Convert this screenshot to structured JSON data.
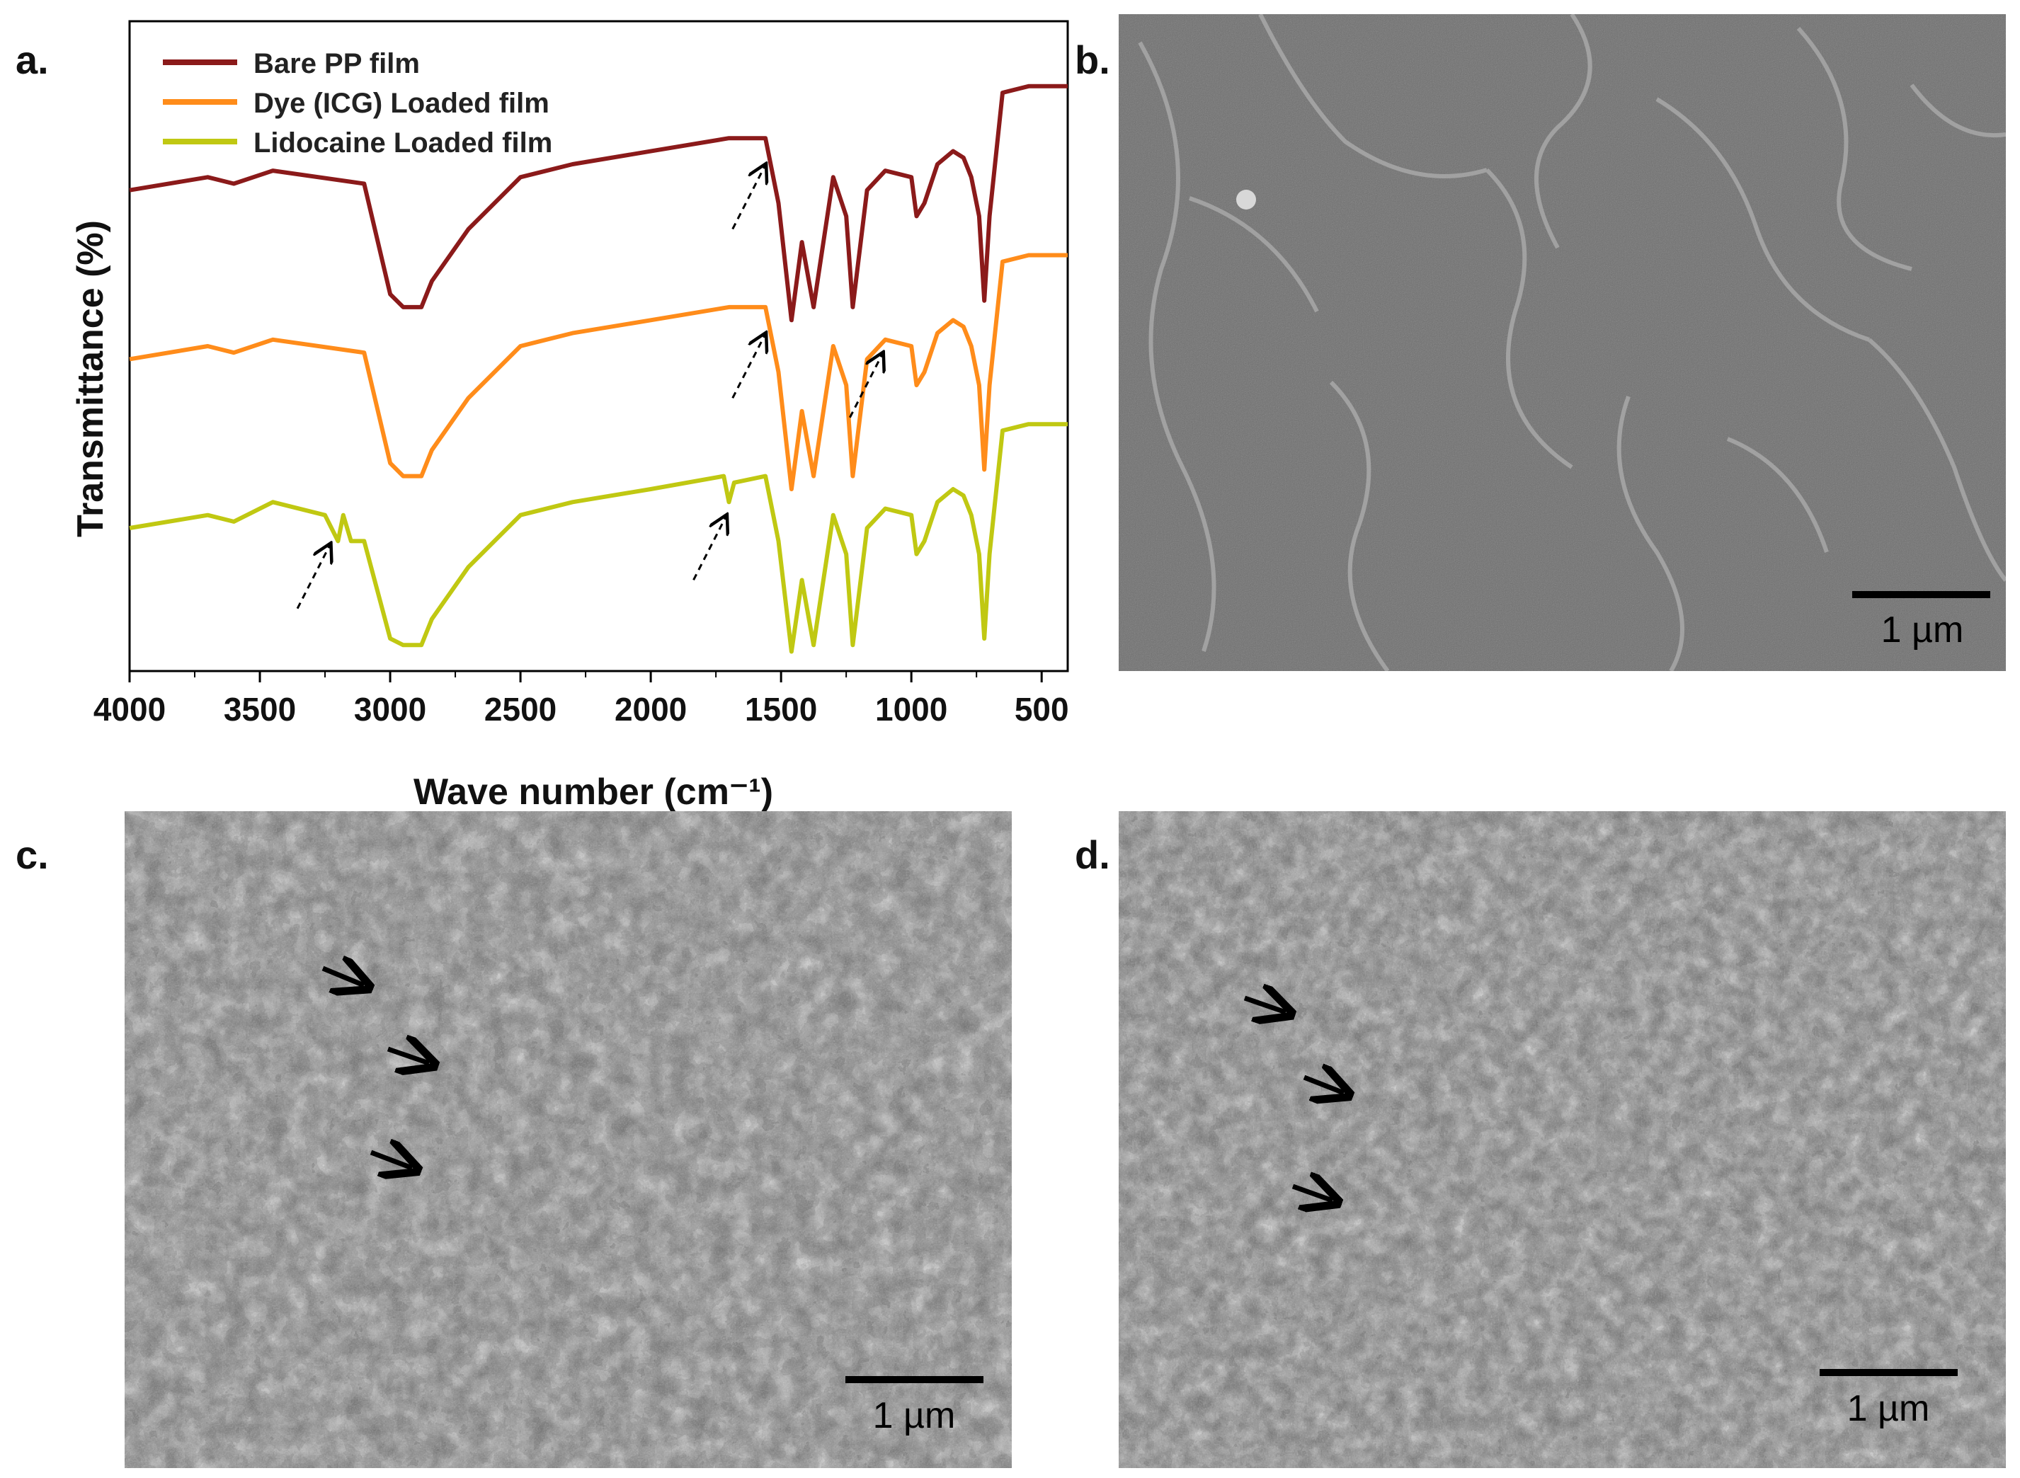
{
  "panels": {
    "a": {
      "label": "a."
    },
    "b": {
      "label": "b.",
      "scale_bar": "1 µm"
    },
    "c": {
      "label": "c.",
      "scale_bar": "1 µm"
    },
    "d": {
      "label": "d.",
      "scale_bar": "1 µm"
    }
  },
  "chart_data": {
    "type": "line",
    "xlabel": "Wave number (cm⁻¹)",
    "ylabel": "Transmittance (%)",
    "xlim": [
      4000,
      400
    ],
    "x_reversed": true,
    "xticks": [
      4000,
      3500,
      3000,
      2500,
      2000,
      1500,
      1000,
      500
    ],
    "legend_position": "top-left",
    "y_tick_labels_shown": false,
    "series": [
      {
        "name": "Bare PP film",
        "color": "#8b1a1a",
        "x": [
          4000,
          3700,
          3600,
          3450,
          3100,
          3000,
          2950,
          2880,
          2840,
          2700,
          2500,
          2300,
          2000,
          1700,
          1560,
          1510,
          1460,
          1420,
          1375,
          1300,
          1250,
          1225,
          1170,
          1100,
          1000,
          980,
          950,
          900,
          840,
          800,
          770,
          740,
          720,
          700,
          650,
          550,
          400
        ],
        "y": [
          0.74,
          0.76,
          0.75,
          0.77,
          0.75,
          0.58,
          0.56,
          0.56,
          0.6,
          0.68,
          0.76,
          0.78,
          0.8,
          0.82,
          0.82,
          0.72,
          0.54,
          0.66,
          0.56,
          0.76,
          0.7,
          0.56,
          0.74,
          0.77,
          0.76,
          0.7,
          0.72,
          0.78,
          0.8,
          0.79,
          0.76,
          0.7,
          0.57,
          0.7,
          0.89,
          0.9,
          0.9
        ]
      },
      {
        "name": "Dye (ICG) Loaded film",
        "color": "#ff8c1a",
        "x": [
          4000,
          3700,
          3600,
          3450,
          3100,
          3000,
          2950,
          2880,
          2840,
          2700,
          2500,
          2300,
          2000,
          1700,
          1560,
          1510,
          1460,
          1420,
          1375,
          1300,
          1250,
          1225,
          1170,
          1100,
          1000,
          980,
          950,
          900,
          840,
          800,
          770,
          740,
          720,
          700,
          650,
          550,
          400
        ],
        "y": [
          0.48,
          0.5,
          0.49,
          0.51,
          0.49,
          0.32,
          0.3,
          0.3,
          0.34,
          0.42,
          0.5,
          0.52,
          0.54,
          0.56,
          0.56,
          0.46,
          0.28,
          0.4,
          0.3,
          0.5,
          0.44,
          0.3,
          0.48,
          0.51,
          0.5,
          0.44,
          0.46,
          0.52,
          0.54,
          0.53,
          0.5,
          0.44,
          0.31,
          0.44,
          0.63,
          0.64,
          0.64
        ]
      },
      {
        "name": "Lidocaine Loaded film",
        "color": "#c0c812",
        "x": [
          4000,
          3700,
          3600,
          3450,
          3250,
          3200,
          3180,
          3150,
          3100,
          3000,
          2950,
          2880,
          2840,
          2700,
          2500,
          2300,
          2000,
          1720,
          1700,
          1680,
          1560,
          1510,
          1460,
          1420,
          1375,
          1300,
          1250,
          1225,
          1170,
          1100,
          1000,
          980,
          950,
          900,
          840,
          800,
          770,
          740,
          720,
          700,
          650,
          550,
          400
        ],
        "y": [
          0.22,
          0.24,
          0.23,
          0.26,
          0.24,
          0.2,
          0.24,
          0.2,
          0.2,
          0.05,
          0.04,
          0.04,
          0.08,
          0.16,
          0.24,
          0.26,
          0.28,
          0.3,
          0.26,
          0.29,
          0.3,
          0.2,
          0.03,
          0.14,
          0.04,
          0.24,
          0.18,
          0.04,
          0.22,
          0.25,
          0.24,
          0.18,
          0.2,
          0.26,
          0.28,
          0.27,
          0.24,
          0.18,
          0.05,
          0.18,
          0.37,
          0.38,
          0.38
        ]
      }
    ],
    "annotations": [
      {
        "type": "dashed-arrow",
        "series": "Bare PP film",
        "points_to_x": 1550
      },
      {
        "type": "dashed-arrow",
        "series": "Dye (ICG) Loaded film",
        "points_to_x": 1550
      },
      {
        "type": "dashed-arrow",
        "series": "Dye (ICG) Loaded film",
        "points_to_x": 1100
      },
      {
        "type": "dashed-arrow",
        "series": "Lidocaine Loaded film",
        "points_to_x": 3220
      },
      {
        "type": "dashed-arrow",
        "series": "Lidocaine Loaded film",
        "points_to_x": 1700
      }
    ]
  }
}
